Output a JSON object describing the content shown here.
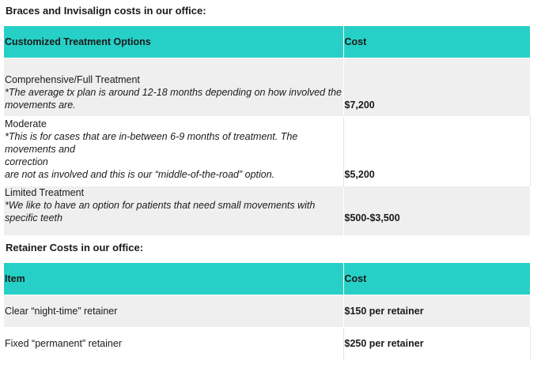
{
  "braces_section": {
    "heading": "Braces and Invisalign costs in our office:",
    "col_options": "Customized Treatment Options",
    "col_cost": "Cost",
    "rows": [
      {
        "title": "Comprehensive/Full Treatment",
        "note_lines": [
          "*The average tx plan is around 12-18 months depending on how involved the",
          "movements are."
        ],
        "cost": "$7,200"
      },
      {
        "title": "Moderate",
        "note_lines": [
          "*This is for cases that are in-between 6-9 months of treatment. The movements and",
          "correction",
          "are not as involved and this is our “middle-of-the-road” option."
        ],
        "cost": "$5,200"
      },
      {
        "title": "Limited Treatment",
        "note_lines": [
          "*We like to have an option for patients that need small movements with specific teeth"
        ],
        "cost": "$500-$3,500"
      }
    ]
  },
  "retainer_section": {
    "heading": "Retainer Costs in our office:",
    "col_item": "Item",
    "col_cost": "Cost",
    "rows": [
      {
        "item": "Clear “night-time” retainer",
        "cost": "$150 per retainer"
      },
      {
        "item": "Fixed “permanent” retainer",
        "cost": "$250 per retainer"
      }
    ]
  }
}
